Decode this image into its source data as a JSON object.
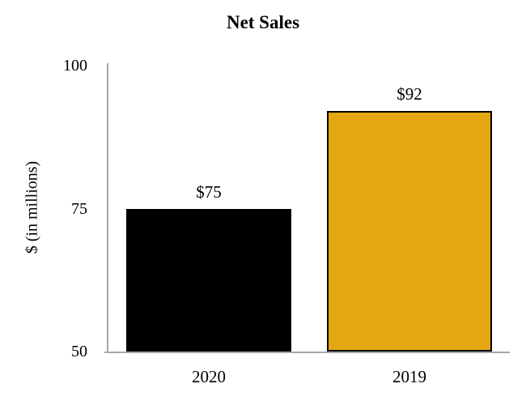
{
  "chart_data": {
    "type": "bar",
    "title": "Net Sales",
    "xlabel": "",
    "ylabel": "$ (in millions)",
    "categories": [
      "2020",
      "2019"
    ],
    "values": [
      75,
      92
    ],
    "value_labels": [
      "$75",
      "$92"
    ],
    "bar_colors": [
      "#000000",
      "#E2A711"
    ],
    "bar_border_color": "#000000",
    "yticks": [
      50,
      75,
      100
    ],
    "ytick_labels": [
      "50",
      "75",
      "100"
    ],
    "ylim": [
      50,
      100
    ],
    "grid": false,
    "legend": false,
    "axis_color": "#A7A7AA",
    "background_color": "#FFFFFF"
  }
}
